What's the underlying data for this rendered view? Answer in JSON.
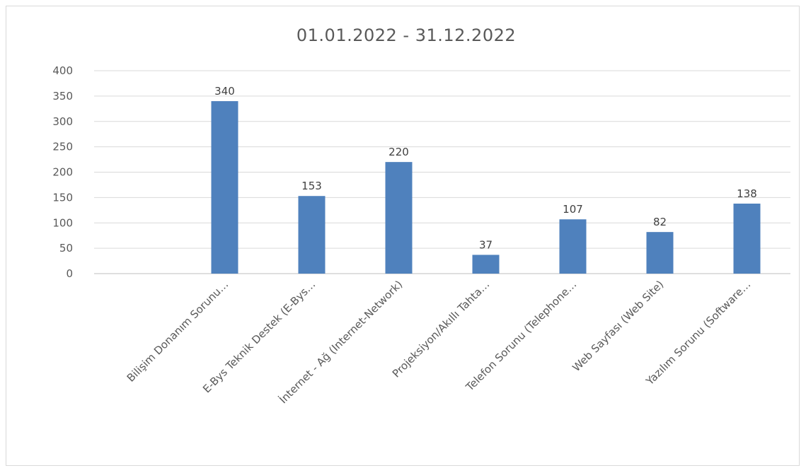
{
  "chart_data": {
    "type": "bar",
    "title": "01.01.2022 -  31.12.2022",
    "xlabel": "",
    "ylabel": "",
    "ylim": [
      0,
      400
    ],
    "yticks": [
      0,
      50,
      100,
      150,
      200,
      250,
      300,
      350,
      400
    ],
    "grid": true,
    "legend": "none",
    "colors": {
      "bar": "#4f81bd"
    },
    "categories": [
      "Bilişim Donanım Sorunu…",
      "E-Bys Teknik Destek (E-Bys…",
      "İnternet - Ağ (Internet-Network)",
      "Projeksiyon/Akıllı Tahta…",
      "Telefon Sorunu (Telephone…",
      "Web Sayfası (Web Site)",
      "Yazılım Sorunu (Software…"
    ],
    "values": [
      340,
      153,
      220,
      37,
      107,
      82,
      138
    ]
  }
}
